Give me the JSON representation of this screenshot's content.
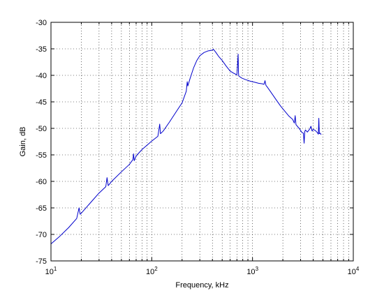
{
  "chart_data": {
    "type": "line",
    "title": "",
    "xlabel": "Frequency, kHz",
    "ylabel": "Gain, dB",
    "xscale": "log",
    "xlim": [
      10,
      10000
    ],
    "ylim": [
      -75,
      -30
    ],
    "grid": "on (dotted, major and minor)",
    "legend": "none",
    "line_color": "#0000cc",
    "x_ticks": [
      {
        "value": 10,
        "base": "10",
        "exp": "1"
      },
      {
        "value": 100,
        "base": "10",
        "exp": "2"
      },
      {
        "value": 1000,
        "base": "10",
        "exp": "3"
      },
      {
        "value": 10000,
        "base": "10",
        "exp": "4"
      }
    ],
    "y_ticks": [
      -75,
      -70,
      -65,
      -60,
      -55,
      -50,
      -45,
      -40,
      -35,
      -30
    ],
    "y_tick_labels": [
      "-75",
      "-70",
      "-65",
      "-60",
      "-55",
      "-50",
      "-45",
      "-40",
      "-35",
      "-30"
    ],
    "series": [
      {
        "x": [
          10,
          12,
          15,
          18,
          19,
          19.5,
          20,
          25,
          30,
          35,
          36,
          37,
          40,
          50,
          60,
          65,
          66,
          67,
          70,
          80,
          100,
          115,
          120,
          122,
          130,
          150,
          180,
          200,
          220,
          225,
          228,
          240,
          260,
          280,
          300,
          330,
          360,
          390,
          410,
          430,
          460,
          500,
          550,
          600,
          650,
          700,
          720,
          725,
          730,
          740,
          780,
          850,
          950,
          1050,
          1150,
          1250,
          1300,
          1330,
          1360,
          1400,
          1500,
          1700,
          1900,
          2100,
          2300,
          2500,
          2600,
          2650,
          2700,
          2900,
          3100,
          3200,
          3250,
          3300,
          3350,
          3500,
          3700,
          3800,
          3900,
          4000,
          4200,
          4400,
          4500,
          4550,
          4600,
          4700,
          4800
        ],
        "y": [
          -71.8,
          -70.5,
          -68.7,
          -67.0,
          -65.0,
          -66.2,
          -66.0,
          -63.9,
          -62.2,
          -61.0,
          -59.3,
          -60.8,
          -60.0,
          -58.2,
          -56.8,
          -55.9,
          -54.8,
          -56.1,
          -55.2,
          -54.0,
          -52.4,
          -51.5,
          -49.2,
          -51.0,
          -50.5,
          -48.8,
          -46.5,
          -45.2,
          -43.0,
          -41.2,
          -42.0,
          -40.6,
          -38.6,
          -37.2,
          -36.3,
          -35.7,
          -35.4,
          -35.3,
          -35.1,
          -35.6,
          -36.4,
          -37.2,
          -38.3,
          -39.2,
          -39.6,
          -39.9,
          -36.0,
          -39.4,
          -40.1,
          -40.2,
          -40.5,
          -40.8,
          -41.1,
          -41.3,
          -41.5,
          -41.6,
          -41.7,
          -41.0,
          -41.9,
          -42.2,
          -43.0,
          -44.5,
          -45.8,
          -46.8,
          -47.7,
          -48.3,
          -49.0,
          -47.6,
          -49.3,
          -50.0,
          -50.8,
          -50.9,
          -52.8,
          -50.6,
          -50.3,
          -50.7,
          -50.1,
          -49.6,
          -50.5,
          -50.2,
          -50.4,
          -50.8,
          -51.1,
          -48.1,
          -51.0,
          -50.9,
          -51.2
        ]
      }
    ]
  }
}
